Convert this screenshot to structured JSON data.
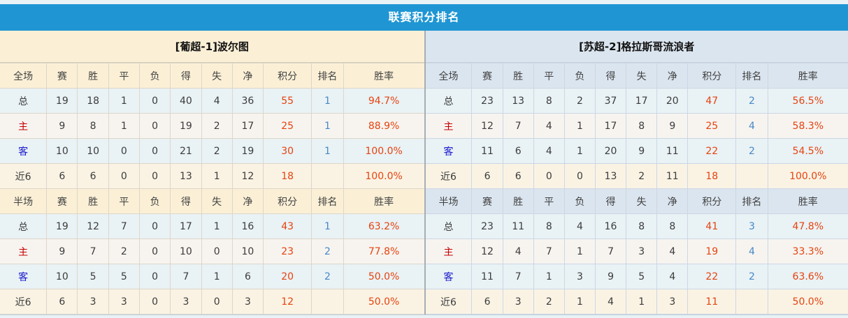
{
  "title": "联赛积分排名",
  "sections": {
    "full_label": "全场",
    "half_label": "半场"
  },
  "header_columns": [
    "赛",
    "胜",
    "平",
    "负",
    "得",
    "失",
    "净",
    "积分",
    "排名",
    "胜率"
  ],
  "colors": {
    "header_bar": "#1f96d3",
    "team1_header_bg": "#fbf0d6",
    "team2_header_bg": "#dbe5ef",
    "points_color": "#e6430f",
    "rank_color": "#4788c7",
    "rate_color": "#e6430f",
    "home_label_color": "#c40000",
    "away_label_color": "#1a1acc"
  },
  "teams": [
    {
      "name": "[葡超-1]波尔图",
      "full": [
        {
          "label": "总",
          "stats": [
            "19",
            "18",
            "1",
            "0",
            "40",
            "4",
            "36"
          ],
          "points": "55",
          "rank": "1",
          "rate": "94.7%"
        },
        {
          "label": "主",
          "stats": [
            "9",
            "8",
            "1",
            "0",
            "19",
            "2",
            "17"
          ],
          "points": "25",
          "rank": "1",
          "rate": "88.9%"
        },
        {
          "label": "客",
          "stats": [
            "10",
            "10",
            "0",
            "0",
            "21",
            "2",
            "19"
          ],
          "points": "30",
          "rank": "1",
          "rate": "100.0%"
        },
        {
          "label": "近6",
          "stats": [
            "6",
            "6",
            "0",
            "0",
            "13",
            "1",
            "12"
          ],
          "points": "18",
          "rank": "",
          "rate": "100.0%"
        }
      ],
      "half": [
        {
          "label": "总",
          "stats": [
            "19",
            "12",
            "7",
            "0",
            "17",
            "1",
            "16"
          ],
          "points": "43",
          "rank": "1",
          "rate": "63.2%"
        },
        {
          "label": "主",
          "stats": [
            "9",
            "7",
            "2",
            "0",
            "10",
            "0",
            "10"
          ],
          "points": "23",
          "rank": "2",
          "rate": "77.8%"
        },
        {
          "label": "客",
          "stats": [
            "10",
            "5",
            "5",
            "0",
            "7",
            "1",
            "6"
          ],
          "points": "20",
          "rank": "2",
          "rate": "50.0%"
        },
        {
          "label": "近6",
          "stats": [
            "6",
            "3",
            "3",
            "0",
            "3",
            "0",
            "3"
          ],
          "points": "12",
          "rank": "",
          "rate": "50.0%"
        }
      ]
    },
    {
      "name": "[苏超-2]格拉斯哥流浪者",
      "full": [
        {
          "label": "总",
          "stats": [
            "23",
            "13",
            "8",
            "2",
            "37",
            "17",
            "20"
          ],
          "points": "47",
          "rank": "2",
          "rate": "56.5%"
        },
        {
          "label": "主",
          "stats": [
            "12",
            "7",
            "4",
            "1",
            "17",
            "8",
            "9"
          ],
          "points": "25",
          "rank": "4",
          "rate": "58.3%"
        },
        {
          "label": "客",
          "stats": [
            "11",
            "6",
            "4",
            "1",
            "20",
            "9",
            "11"
          ],
          "points": "22",
          "rank": "2",
          "rate": "54.5%"
        },
        {
          "label": "近6",
          "stats": [
            "6",
            "6",
            "0",
            "0",
            "13",
            "2",
            "11"
          ],
          "points": "18",
          "rank": "",
          "rate": "100.0%"
        }
      ],
      "half": [
        {
          "label": "总",
          "stats": [
            "23",
            "11",
            "8",
            "4",
            "16",
            "8",
            "8"
          ],
          "points": "41",
          "rank": "3",
          "rate": "47.8%"
        },
        {
          "label": "主",
          "stats": [
            "12",
            "4",
            "7",
            "1",
            "7",
            "3",
            "4"
          ],
          "points": "19",
          "rank": "4",
          "rate": "33.3%"
        },
        {
          "label": "客",
          "stats": [
            "11",
            "7",
            "1",
            "3",
            "9",
            "5",
            "4"
          ],
          "points": "22",
          "rank": "2",
          "rate": "63.6%"
        },
        {
          "label": "近6",
          "stats": [
            "6",
            "3",
            "2",
            "1",
            "4",
            "1",
            "3"
          ],
          "points": "11",
          "rank": "",
          "rate": "50.0%"
        }
      ]
    }
  ]
}
